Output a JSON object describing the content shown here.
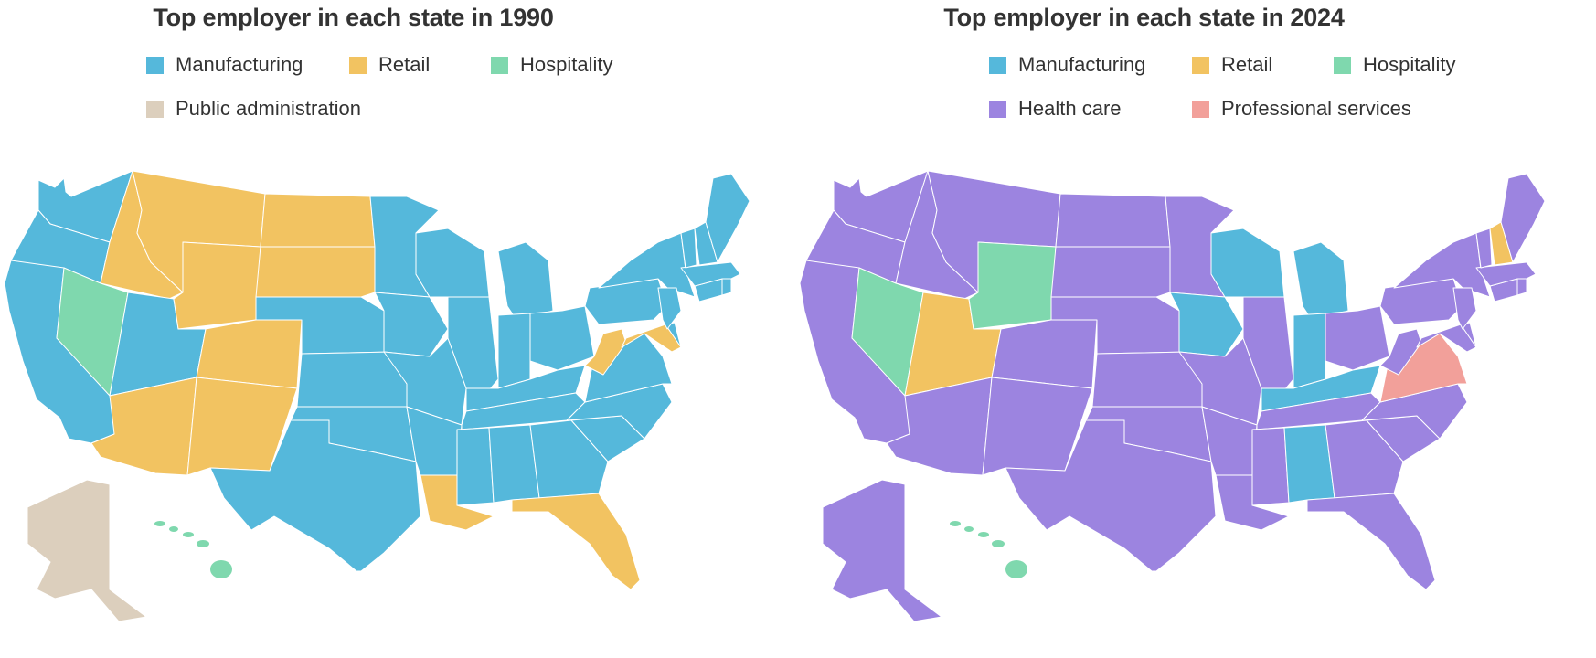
{
  "colors": {
    "manufacturing": "#55b8db",
    "retail": "#f2c361",
    "hospitality": "#7fd8ae",
    "public_administration": "#dccfbd",
    "health_care": "#9c84e0",
    "professional_services": "#f2a09a"
  },
  "maps": [
    {
      "title": "Top employer in each state in 1990",
      "legend": [
        {
          "label": "Manufacturing",
          "color": "#55b8db"
        },
        {
          "label": "Retail",
          "color": "#f2c361"
        },
        {
          "label": "Hospitality",
          "color": "#7fd8ae"
        },
        {
          "label": "Public administration",
          "color": "#dccfbd"
        }
      ],
      "states": {
        "WA": "Manufacturing",
        "OR": "Manufacturing",
        "CA": "Manufacturing",
        "ID": "Retail",
        "NV": "Hospitality",
        "UT": "Manufacturing",
        "AZ": "Retail",
        "MT": "Retail",
        "WY": "Retail",
        "CO": "Retail",
        "NM": "Retail",
        "ND": "Retail",
        "SD": "Retail",
        "NE": "Manufacturing",
        "KS": "Manufacturing",
        "OK": "Manufacturing",
        "TX": "Manufacturing",
        "MN": "Manufacturing",
        "IA": "Manufacturing",
        "MO": "Manufacturing",
        "AR": "Manufacturing",
        "LA": "Retail",
        "WI": "Manufacturing",
        "IL": "Manufacturing",
        "MI": "Manufacturing",
        "IN": "Manufacturing",
        "OH": "Manufacturing",
        "KY": "Manufacturing",
        "TN": "Manufacturing",
        "MS": "Manufacturing",
        "AL": "Manufacturing",
        "GA": "Manufacturing",
        "FL": "Retail",
        "SC": "Manufacturing",
        "NC": "Manufacturing",
        "VA": "Manufacturing",
        "WV": "Retail",
        "PA": "Manufacturing",
        "NY": "Manufacturing",
        "MD": "Retail",
        "DE": "Manufacturing",
        "NJ": "Manufacturing",
        "CT": "Manufacturing",
        "RI": "Manufacturing",
        "MA": "Manufacturing",
        "VT": "Manufacturing",
        "NH": "Manufacturing",
        "ME": "Manufacturing",
        "AK": "Public administration",
        "HI": "Hospitality"
      }
    },
    {
      "title": "Top employer in each state in 2024",
      "legend": [
        {
          "label": "Manufacturing",
          "color": "#55b8db"
        },
        {
          "label": "Retail",
          "color": "#f2c361"
        },
        {
          "label": "Hospitality",
          "color": "#7fd8ae"
        },
        {
          "label": "Health care",
          "color": "#9c84e0"
        },
        {
          "label": "Professional services",
          "color": "#f2a09a"
        }
      ],
      "states": {
        "WA": "Health care",
        "OR": "Health care",
        "CA": "Health care",
        "ID": "Health care",
        "NV": "Hospitality",
        "UT": "Retail",
        "AZ": "Health care",
        "MT": "Health care",
        "WY": "Hospitality",
        "CO": "Health care",
        "NM": "Health care",
        "ND": "Health care",
        "SD": "Health care",
        "NE": "Health care",
        "KS": "Health care",
        "OK": "Health care",
        "TX": "Health care",
        "MN": "Health care",
        "IA": "Manufacturing",
        "MO": "Health care",
        "AR": "Health care",
        "LA": "Health care",
        "WI": "Manufacturing",
        "IL": "Health care",
        "MI": "Manufacturing",
        "IN": "Manufacturing",
        "OH": "Health care",
        "KY": "Manufacturing",
        "TN": "Health care",
        "MS": "Health care",
        "AL": "Manufacturing",
        "GA": "Health care",
        "FL": "Health care",
        "SC": "Health care",
        "NC": "Health care",
        "VA": "Professional services",
        "WV": "Health care",
        "PA": "Health care",
        "NY": "Health care",
        "MD": "Health care",
        "DE": "Health care",
        "NJ": "Health care",
        "CT": "Health care",
        "RI": "Health care",
        "MA": "Health care",
        "VT": "Health care",
        "NH": "Retail",
        "ME": "Health care",
        "AK": "Health care",
        "HI": "Hospitality"
      }
    }
  ]
}
